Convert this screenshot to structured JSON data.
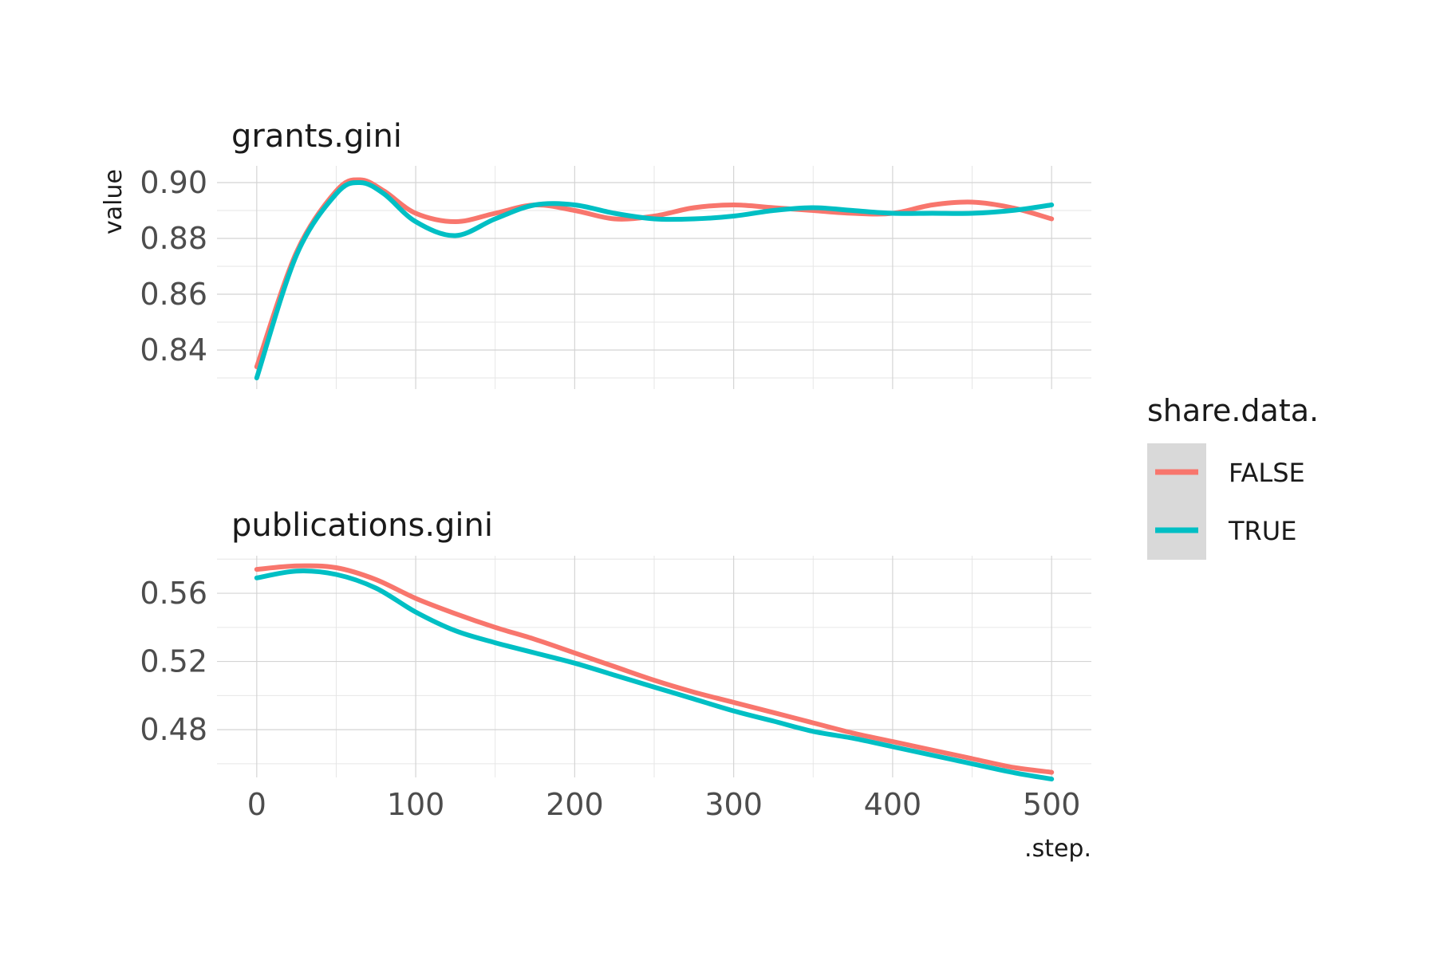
{
  "chart_data": {
    "type": "line",
    "xlabel": ".step.",
    "ylabel": "value",
    "legend": {
      "title": "share.data.",
      "placement": "right",
      "entries": [
        {
          "label": "FALSE",
          "color": "#F8766D"
        },
        {
          "label": "TRUE",
          "color": "#00BFC4"
        }
      ]
    },
    "x_ticks": [
      0,
      100,
      200,
      300,
      400,
      500
    ],
    "xlim": [
      -25,
      525
    ],
    "grid": true,
    "facets": [
      {
        "title": "grants.gini",
        "ylim": [
          0.826,
          0.906
        ],
        "y_ticks": [
          0.84,
          0.86,
          0.88,
          0.9
        ],
        "y_tick_labels": [
          "0.84",
          "0.86",
          "0.88",
          "0.90"
        ],
        "x": [
          0,
          25,
          50,
          65,
          80,
          100,
          125,
          150,
          175,
          200,
          225,
          250,
          275,
          300,
          325,
          350,
          375,
          400,
          425,
          450,
          475,
          500
        ],
        "series": [
          {
            "name": "FALSE",
            "color": "#F8766D",
            "values": [
              0.834,
              0.875,
              0.897,
              0.901,
              0.897,
              0.889,
              0.886,
              0.889,
              0.892,
              0.89,
              0.887,
              0.888,
              0.891,
              0.892,
              0.891,
              0.89,
              0.889,
              0.889,
              0.892,
              0.893,
              0.891,
              0.887
            ]
          },
          {
            "name": "TRUE",
            "color": "#00BFC4",
            "values": [
              0.83,
              0.874,
              0.896,
              0.9,
              0.896,
              0.886,
              0.881,
              0.887,
              0.892,
              0.892,
              0.889,
              0.887,
              0.887,
              0.888,
              0.89,
              0.891,
              0.89,
              0.889,
              0.889,
              0.889,
              0.89,
              0.892
            ]
          }
        ]
      },
      {
        "title": "publications.gini",
        "ylim": [
          0.452,
          0.582
        ],
        "y_ticks": [
          0.48,
          0.52,
          0.56
        ],
        "y_tick_labels": [
          "0.48",
          "0.52",
          "0.56"
        ],
        "x": [
          0,
          25,
          50,
          75,
          100,
          125,
          150,
          175,
          200,
          225,
          250,
          275,
          300,
          325,
          350,
          375,
          400,
          425,
          450,
          475,
          500
        ],
        "series": [
          {
            "name": "FALSE",
            "color": "#F8766D",
            "values": [
              0.574,
              0.576,
              0.575,
              0.568,
              0.557,
              0.548,
              0.54,
              0.533,
              0.525,
              0.517,
              0.509,
              0.502,
              0.496,
              0.49,
              0.484,
              0.478,
              0.473,
              0.468,
              0.463,
              0.458,
              0.455
            ]
          },
          {
            "name": "TRUE",
            "color": "#00BFC4",
            "values": [
              0.569,
              0.573,
              0.571,
              0.563,
              0.549,
              0.538,
              0.531,
              0.525,
              0.519,
              0.512,
              0.505,
              0.498,
              0.491,
              0.485,
              0.479,
              0.475,
              0.47,
              0.465,
              0.46,
              0.455,
              0.451
            ]
          }
        ]
      }
    ]
  }
}
